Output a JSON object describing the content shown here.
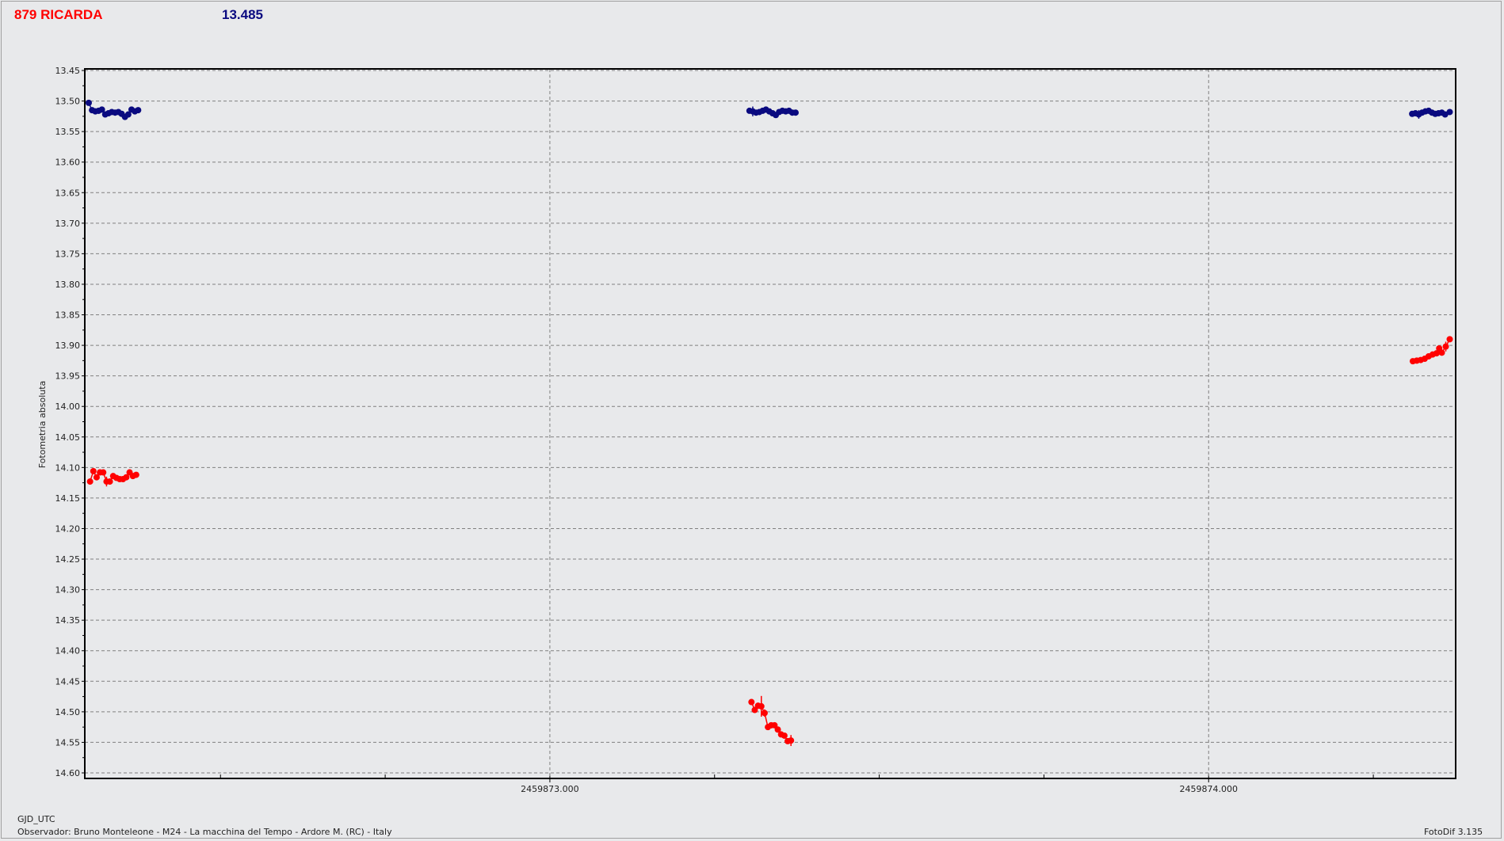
{
  "header": {
    "object_name": "879 RICARDA",
    "reference_value": "13.485"
  },
  "footer": {
    "xlabel": "GJD_UTC",
    "observer": "Observador: Bruno Monteleone - M24 - La macchina del Tempo - Ardore M. (RC) - Italy",
    "software": "FotoDif 3.135"
  },
  "chart_data": {
    "type": "scatter",
    "xlabel": "GJD_UTC",
    "ylabel": "Fotometria absoluta",
    "xlim": [
      2459872.294,
      2459874.375
    ],
    "ylim": [
      13.45,
      14.6
    ],
    "y_inverted": true,
    "grid": true,
    "x_ticks": [
      {
        "value": 2459873.0,
        "label": "2459873.000"
      },
      {
        "value": 2459874.0,
        "label": "2459874.000"
      }
    ],
    "x_minor_step": 0.25,
    "y_ticks": [
      "13.45",
      "13.50",
      "13.55",
      "13.60",
      "13.65",
      "13.70",
      "13.75",
      "13.80",
      "13.85",
      "13.90",
      "13.95",
      "14.00",
      "14.05",
      "14.10",
      "14.15",
      "14.20",
      "14.25",
      "14.30",
      "14.35",
      "14.40",
      "14.45",
      "14.50",
      "14.55",
      "14.60"
    ],
    "colors": {
      "comparison": "#0a0a80",
      "asteroid": "#ff0000"
    },
    "series": [
      {
        "key": "comparison",
        "color": "#0a0a80",
        "x": [
          2459872.3,
          2459872.305,
          2459872.31,
          2459872.315,
          2459872.32,
          2459872.325,
          2459872.33,
          2459872.335,
          2459872.34,
          2459872.345,
          2459872.35,
          2459872.355,
          2459872.36,
          2459872.365,
          2459872.37,
          2459872.375,
          2459873.303,
          2459873.308,
          2459873.313,
          2459873.318,
          2459873.323,
          2459873.328,
          2459873.333,
          2459873.338,
          2459873.343,
          2459873.348,
          2459873.353,
          2459873.358,
          2459873.363,
          2459873.368,
          2459873.373,
          2459874.309,
          2459874.314,
          2459874.319,
          2459874.324,
          2459874.329,
          2459874.334,
          2459874.339,
          2459874.344,
          2459874.349,
          2459874.354,
          2459874.359,
          2459874.366
        ],
        "y": [
          13.503,
          13.515,
          13.517,
          13.516,
          13.514,
          13.522,
          13.52,
          13.518,
          13.519,
          13.518,
          13.521,
          13.526,
          13.522,
          13.514,
          13.517,
          13.515,
          13.516,
          13.517,
          13.519,
          13.518,
          13.516,
          13.514,
          13.517,
          13.52,
          13.523,
          13.518,
          13.516,
          13.517,
          13.516,
          13.519,
          13.519,
          13.521,
          13.52,
          13.522,
          13.519,
          13.517,
          13.516,
          13.519,
          13.521,
          13.52,
          13.519,
          13.522,
          13.518
        ],
        "err": [
          0.002,
          0.003,
          0.003,
          0.005,
          0.004,
          0.003,
          0.003,
          0.004,
          0.003,
          0.003,
          0.003,
          0.004,
          0.003,
          0.004,
          0.003,
          0.003,
          0.003,
          0.008,
          0.004,
          0.003,
          0.003,
          0.004,
          0.003,
          0.003,
          0.003,
          0.003,
          0.003,
          0.003,
          0.003,
          0.003,
          0.003,
          0.003,
          0.003,
          0.007,
          0.003,
          0.004,
          0.003,
          0.003,
          0.003,
          0.003,
          0.003,
          0.003,
          0.003
        ]
      },
      {
        "key": "asteroid",
        "color": "#ff0000",
        "x": [
          2459872.302,
          2459872.307,
          2459872.312,
          2459872.317,
          2459872.322,
          2459872.327,
          2459872.332,
          2459872.337,
          2459872.342,
          2459872.347,
          2459872.352,
          2459872.357,
          2459872.362,
          2459872.367,
          2459872.372,
          2459873.306,
          2459873.311,
          2459873.316,
          2459873.321,
          2459873.326,
          2459873.331,
          2459873.336,
          2459873.341,
          2459873.346,
          2459873.351,
          2459873.356,
          2459873.361,
          2459873.366,
          2459874.31,
          2459874.316,
          2459874.322,
          2459874.328,
          2459874.334,
          2459874.34,
          2459874.346,
          2459874.35,
          2459874.354,
          2459874.36,
          2459874.366
        ],
        "y": [
          14.123,
          14.106,
          14.116,
          14.108,
          14.108,
          14.123,
          14.123,
          14.114,
          14.117,
          14.119,
          14.119,
          14.116,
          14.108,
          14.114,
          14.112,
          14.484,
          14.497,
          14.49,
          14.491,
          14.502,
          14.525,
          14.522,
          14.522,
          14.529,
          14.537,
          14.539,
          14.548,
          14.547,
          13.926,
          13.925,
          13.924,
          13.922,
          13.918,
          13.915,
          13.913,
          13.905,
          13.912,
          13.902,
          13.89
        ],
        "err": [
          0.005,
          0.003,
          0.003,
          0.003,
          0.003,
          0.008,
          0.005,
          0.003,
          0.003,
          0.003,
          0.003,
          0.003,
          0.003,
          0.003,
          0.003,
          0.003,
          0.003,
          0.003,
          0.017,
          0.006,
          0.004,
          0.003,
          0.003,
          0.003,
          0.003,
          0.003,
          0.003,
          0.009,
          0.004,
          0.003,
          0.003,
          0.003,
          0.003,
          0.003,
          0.003,
          0.003,
          0.004,
          0.008,
          0.003
        ]
      }
    ]
  }
}
